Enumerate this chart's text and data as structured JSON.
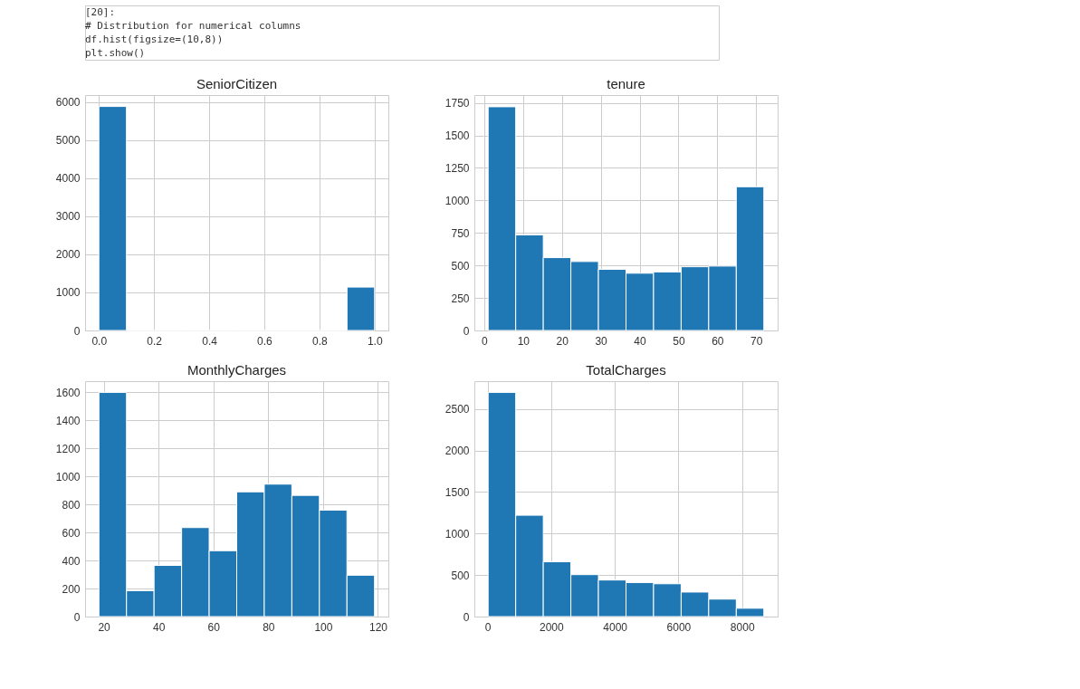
{
  "chart_data": [
    {
      "type": "histogram",
      "title": "SeniorCitizen",
      "annotations": [
        "[20]:",
        "# Distribution for numerical columns",
        "df.hist(figsize=(10,8))",
        "plt.show()"
      ],
      "bins": [
        0,
        0.1,
        0.2,
        0.3,
        0.4,
        0.5,
        0.6,
        0.7,
        0.8,
        0.9,
        1.0
      ],
      "values": [
        5890,
        0,
        0,
        0,
        0,
        0,
        0,
        0,
        0,
        1140
      ],
      "color": "#1f77b4",
      "grid": true,
      "xlim": [
        -0.05,
        1.05
      ],
      "ylim": [
        0,
        6190
      ],
      "xticks": [
        {
          "value": 0,
          "label": "0.0"
        },
        0.2,
        0.4,
        0.6,
        0.8,
        {
          "value": 1,
          "label": "1.0"
        }
      ],
      "yticks": [
        0,
        1000,
        2000,
        3000,
        4000,
        5000,
        6000
      ]
    },
    {
      "type": "histogram",
      "title": "tenure",
      "bins": [
        1,
        8.1,
        15.2,
        22.3,
        29.4,
        36.5,
        43.6,
        50.7,
        57.8,
        64.9,
        72
      ],
      "values": [
        1720,
        735,
        560,
        530,
        470,
        440,
        450,
        490,
        495,
        1105
      ],
      "color": "#1f77b4",
      "grid": true,
      "xlim": [
        -2.55,
        75.55
      ],
      "ylim": [
        0,
        1810
      ],
      "xticks": [
        0,
        10,
        20,
        30,
        40,
        50,
        60,
        70
      ],
      "yticks": [
        0,
        250,
        500,
        750,
        1000,
        1250,
        1500,
        1750
      ]
    },
    {
      "type": "histogram",
      "title": "MonthlyCharges",
      "bins": [
        18.25,
        28.3,
        38.35,
        48.4,
        58.45,
        68.5,
        78.55,
        88.6,
        98.65,
        108.7,
        118.75
      ],
      "values": [
        1600,
        185,
        365,
        635,
        470,
        890,
        945,
        865,
        760,
        295
      ],
      "color": "#1f77b4",
      "grid": true,
      "xlim": [
        13.2,
        123.8
      ],
      "ylim": [
        0,
        1680
      ],
      "xticks": [
        20,
        40,
        60,
        80,
        100,
        120
      ],
      "yticks": [
        0,
        200,
        400,
        600,
        800,
        1000,
        1200,
        1400,
        1600
      ]
    },
    {
      "type": "histogram",
      "title": "TotalCharges",
      "bins": [
        18.8,
        885.4,
        1752,
        2618.6,
        3485.2,
        4351.8,
        5218.4,
        6085,
        6951.6,
        7818.2,
        8684.8
      ],
      "values": [
        2700,
        1220,
        660,
        505,
        440,
        410,
        395,
        295,
        210,
        100
      ],
      "color": "#1f77b4",
      "grid": true,
      "xlim": [
        -414.5,
        9118.1
      ],
      "ylim": [
        0,
        2835
      ],
      "xticks": [
        0,
        2000,
        4000,
        6000,
        8000
      ],
      "yticks": [
        0,
        500,
        1000,
        1500,
        2000,
        2500
      ]
    }
  ]
}
